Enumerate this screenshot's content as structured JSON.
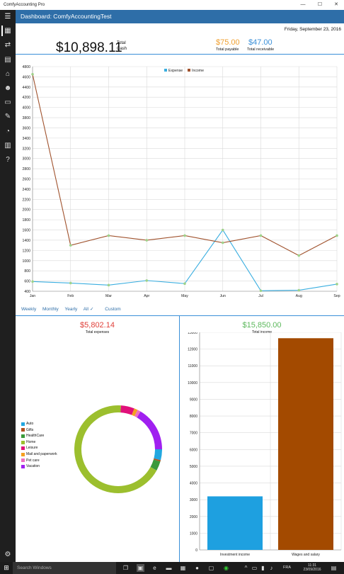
{
  "window": {
    "app_title": "ComfyAccounting Pro",
    "minimize": "—",
    "maximize": "☐",
    "close": "✕"
  },
  "header": {
    "menu_icon": "☰",
    "title": "Dashboard: ComfyAccountingTest"
  },
  "sidebar": {
    "items": [
      {
        "name": "dashboard-icon",
        "glyph": "▦"
      },
      {
        "name": "transactions-icon",
        "glyph": "⇄"
      },
      {
        "name": "documents-icon",
        "glyph": "▤"
      },
      {
        "name": "bank-icon",
        "glyph": "⌂"
      },
      {
        "name": "contacts-icon",
        "glyph": "☻"
      },
      {
        "name": "invoices-icon",
        "glyph": "▭"
      },
      {
        "name": "reports-icon",
        "glyph": "✎"
      },
      {
        "name": "pie-chart-icon",
        "glyph": "◔"
      },
      {
        "name": "library-icon",
        "glyph": "▥"
      },
      {
        "name": "help-icon",
        "glyph": "?"
      }
    ],
    "settings_icon": "⚙"
  },
  "summary": {
    "date": "Friday, September 23, 2016",
    "total_cash": "$10,898.11",
    "total_cash_label_1": "Total",
    "total_cash_label_2": "Cash",
    "total_payable": "$75.00",
    "total_payable_label": "Total payable",
    "total_receivable": "$47.00",
    "total_receivable_label": "Total receivable",
    "payable_color": "#f0a030",
    "receivable_color": "#3a8fd8"
  },
  "filters": {
    "weekly": "Weekly",
    "monthly": "Monthly",
    "yearly": "Yearly",
    "all": "All",
    "custom": "Custom"
  },
  "expenses": {
    "amount": "$5,802.14",
    "label": "Total expenses"
  },
  "income": {
    "amount": "$15,850.00",
    "label": "Total income"
  },
  "chart_data": [
    {
      "type": "line",
      "categories": [
        "Jan",
        "Feb",
        "Mar",
        "Apr",
        "May",
        "Jun",
        "Jul",
        "Aug",
        "Sep"
      ],
      "ylim": [
        400,
        4800
      ],
      "yticks": [
        400,
        600,
        800,
        1000,
        1200,
        1400,
        1600,
        1800,
        2000,
        2200,
        2400,
        2600,
        2800,
        3000,
        3200,
        3400,
        3600,
        3800,
        4000,
        4200,
        4400,
        4600,
        4800
      ],
      "grid": true,
      "legend": "top-center",
      "series": [
        {
          "name": "Expense",
          "color": "#3aaee0",
          "values": [
            590,
            560,
            520,
            610,
            550,
            1600,
            410,
            420,
            540
          ]
        },
        {
          "name": "Income",
          "color": "#a0522d",
          "values": [
            4650,
            1300,
            1490,
            1400,
            1490,
            1350,
            1490,
            1100,
            1490
          ]
        }
      ]
    },
    {
      "type": "pie",
      "legend": "left",
      "slices": [
        {
          "label": "Auto",
          "value": 4,
          "color": "#22a7e0"
        },
        {
          "label": "Gifts",
          "value": 0.5,
          "color": "#b0501e"
        },
        {
          "label": "HealthCare",
          "value": 3.5,
          "color": "#3a9a3a"
        },
        {
          "label": "Home",
          "value": 68,
          "color": "#9cbf2e"
        },
        {
          "label": "Leisure",
          "value": 5,
          "color": "#e0107a"
        },
        {
          "label": "Mail and paperwork",
          "value": 1.3,
          "color": "#f5a020"
        },
        {
          "label": "Pet care",
          "value": 1.2,
          "color": "#ee6fc0"
        },
        {
          "label": "Vacation",
          "value": 16.5,
          "color": "#a020f0"
        }
      ]
    },
    {
      "type": "bar",
      "categories": [
        "Investment income",
        "Wages and salary"
      ],
      "values": [
        3200,
        12650
      ],
      "colors": [
        "#1ea0e0",
        "#a34a00"
      ],
      "ylim": [
        0,
        13000
      ],
      "yticks": [
        0,
        1000,
        2000,
        3000,
        4000,
        5000,
        6000,
        7000,
        8000,
        9000,
        10000,
        11000,
        12000,
        13000
      ],
      "grid": true
    }
  ],
  "taskbar": {
    "start_icon": "⊞",
    "search_placeholder": "Search Windows",
    "lang": "FRA",
    "time": "11:31",
    "date": "23/09/2016"
  }
}
